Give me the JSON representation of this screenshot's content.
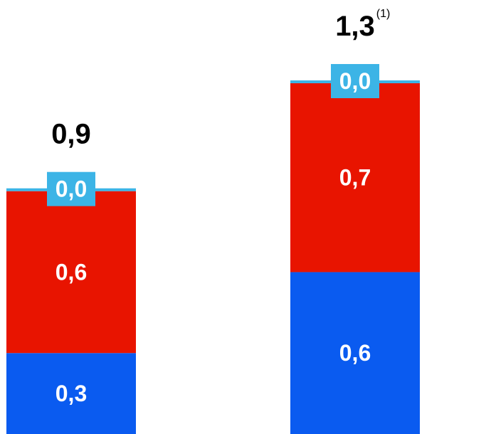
{
  "chart_data": {
    "type": "bar",
    "stacked": true,
    "categories": [
      "",
      ""
    ],
    "series": [
      {
        "values": [
          0.3,
          0.6
        ],
        "labels": [
          "0,3",
          "0,6"
        ],
        "color": "#0a5bf0"
      },
      {
        "values": [
          0.6,
          0.7
        ],
        "labels": [
          "0,6",
          "0,7"
        ],
        "color": "#e81400"
      },
      {
        "values": [
          0.0,
          0.0
        ],
        "labels": [
          "0,0",
          "0,0"
        ],
        "color": "#3cb4e6"
      }
    ],
    "totals": [
      {
        "value": 0.9,
        "label": "0,9",
        "footnote": ""
      },
      {
        "value": 1.3,
        "label": "1,3",
        "footnote": "(1)"
      }
    ],
    "ylim": [
      0,
      1.3
    ],
    "grid": false,
    "legend": "none",
    "title": "",
    "xlabel": "",
    "ylabel": ""
  }
}
